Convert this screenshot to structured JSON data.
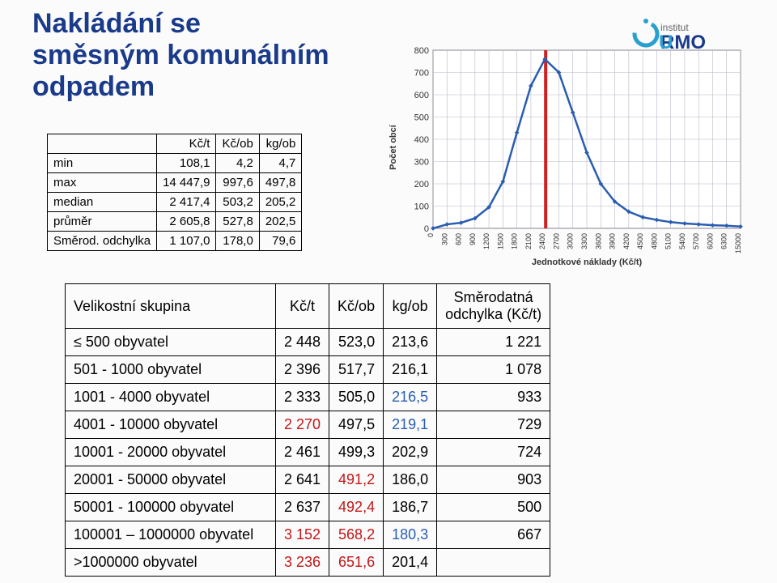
{
  "title_l1": "Nakládání se",
  "title_l2": "směsným komunálním",
  "title_l3": "odpadem",
  "logo": {
    "inst": "institut",
    "rmo": "RMO",
    "arc_color": "#2aa0d0"
  },
  "stats": {
    "headers": [
      "",
      "Kč/t",
      "Kč/ob",
      "kg/ob"
    ],
    "rows": [
      {
        "label": "min",
        "v": [
          "108,1",
          "4,2",
          "4,7"
        ]
      },
      {
        "label": "max",
        "v": [
          "14 447,9",
          "997,6",
          "497,8"
        ]
      },
      {
        "label": "median",
        "v": [
          "2 417,4",
          "503,2",
          "205,2"
        ]
      },
      {
        "label": "průměr",
        "v": [
          "2 605,8",
          "527,8",
          "202,5"
        ]
      },
      {
        "label": "Směrod. odchylka",
        "v": [
          "1 107,0",
          "178,0",
          "79,6"
        ]
      }
    ]
  },
  "chart": {
    "ylabel": "Počet obcí",
    "xlabel": "Jednotkové náklady (Kč/t)",
    "ymin": 0,
    "ymax": 800,
    "ystep": 100,
    "xticks": [
      0,
      300,
      600,
      900,
      1200,
      1500,
      1800,
      2100,
      2400,
      2700,
      3000,
      3300,
      3600,
      3900,
      4200,
      4500,
      4800,
      5100,
      5400,
      5700,
      6000,
      6300,
      15000
    ],
    "redline_x": 2417.4,
    "points": [
      [
        0,
        0
      ],
      [
        300,
        18
      ],
      [
        600,
        25
      ],
      [
        900,
        45
      ],
      [
        1200,
        95
      ],
      [
        1500,
        210
      ],
      [
        1800,
        430
      ],
      [
        2100,
        640
      ],
      [
        2400,
        760
      ],
      [
        2700,
        700
      ],
      [
        3000,
        520
      ],
      [
        3300,
        340
      ],
      [
        3600,
        200
      ],
      [
        3900,
        120
      ],
      [
        4200,
        75
      ],
      [
        4500,
        50
      ],
      [
        4800,
        38
      ],
      [
        5100,
        28
      ],
      [
        5400,
        22
      ],
      [
        5700,
        18
      ],
      [
        6000,
        14
      ],
      [
        6300,
        12
      ],
      [
        15000,
        8
      ]
    ],
    "curve_color": "#2a5db0",
    "grid_color": "#b8b8c8",
    "red_color": "#d02020",
    "bg": "#ffffff"
  },
  "main": {
    "headers": [
      "Velikostní skupina",
      "Kč/t",
      "Kč/ob",
      "kg/ob",
      "Směrodatná odchylka (Kč/t)"
    ],
    "rows": [
      {
        "grp": "≤ 500 obyvatel",
        "v": [
          "2 448",
          "523,0",
          "213,6",
          "1 221"
        ],
        "hi": []
      },
      {
        "grp": "501 - 1000 obyvatel",
        "v": [
          "2 396",
          "517,7",
          "216,1",
          "1 078"
        ],
        "hi": []
      },
      {
        "grp": "1001 - 4000 obyvatel",
        "v": [
          "2 333",
          "505,0",
          "216,5",
          "933"
        ],
        "hi": [
          3
        ]
      },
      {
        "grp": "4001 - 10000 obyvatel",
        "v": [
          "2 270",
          "497,5",
          "219,1",
          "729"
        ],
        "hi": [
          1,
          3
        ]
      },
      {
        "grp": "10001 - 20000 obyvatel",
        "v": [
          "2 461",
          "499,3",
          "202,9",
          "724"
        ],
        "hi": []
      },
      {
        "grp": "20001 - 50000 obyvatel",
        "v": [
          "2 641",
          "491,2",
          "186,0",
          "903"
        ],
        "hi": [
          2
        ]
      },
      {
        "grp": "50001 - 100000 obyvatel",
        "v": [
          "2 637",
          "492,4",
          "186,7",
          "500"
        ],
        "hi": [
          2
        ]
      },
      {
        "grp": "100001 – 1000000 obyvatel",
        "v": [
          "3 152",
          "568,2",
          "180,3",
          "667"
        ],
        "hi": [
          1,
          2,
          3
        ]
      },
      {
        "grp": ">1000000 obyvatel",
        "v": [
          "3 236",
          "651,6",
          "201,4",
          ""
        ],
        "hi": [
          1,
          2
        ]
      }
    ]
  }
}
